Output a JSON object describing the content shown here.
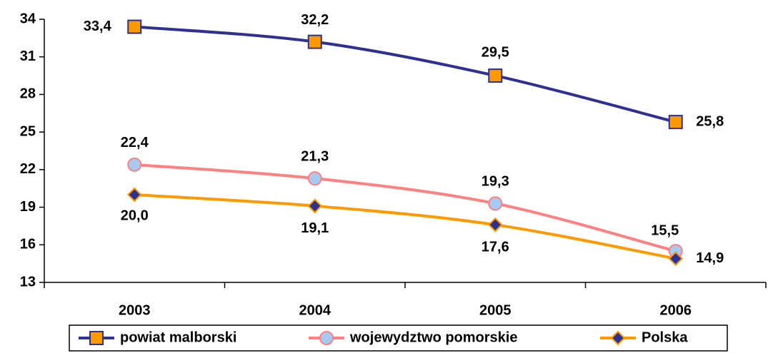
{
  "chart_data": {
    "type": "line",
    "categories": [
      "2003",
      "2004",
      "2005",
      "2006"
    ],
    "ylim": [
      13,
      34
    ],
    "yticks": [
      13,
      16,
      19,
      22,
      25,
      28,
      31,
      34
    ],
    "legend": "bottom",
    "series": [
      {
        "name": "powiat malborski",
        "color": "#2e3192",
        "marker": "square",
        "marker_color": "#ff9900",
        "values": [
          33.4,
          32.2,
          29.5,
          25.8
        ],
        "value_labels": [
          "33,4",
          "32,2",
          "29,5",
          "25,8"
        ]
      },
      {
        "name": "wojewydztwo pomorskie",
        "color": "#ff8080",
        "marker": "circle",
        "marker_color": "#a6caf0",
        "values": [
          22.4,
          21.3,
          19.3,
          15.5
        ],
        "value_labels": [
          "22,4",
          "21,3",
          "19,3",
          "15,5"
        ]
      },
      {
        "name": "Polska",
        "color": "#ff9900",
        "marker": "diamond",
        "marker_color": "#2e3192",
        "values": [
          20.0,
          19.1,
          17.6,
          14.9
        ],
        "value_labels": [
          "20,0",
          "19,1",
          "17,6",
          "14,9"
        ]
      }
    ]
  }
}
